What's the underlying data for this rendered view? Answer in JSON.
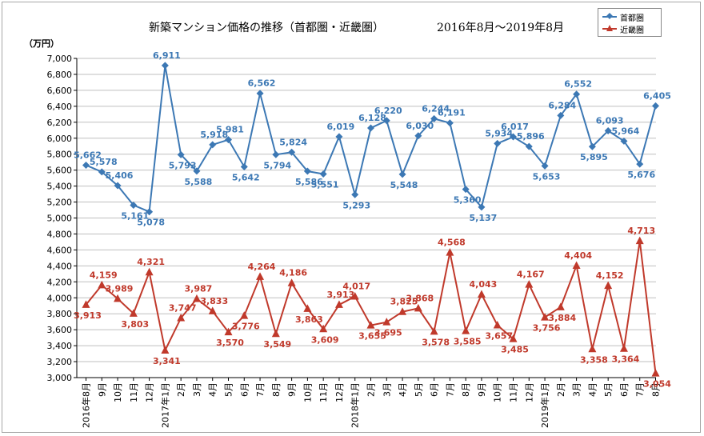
{
  "title": {
    "main": "新築マンション価格の推移（首都圏・近畿圏）",
    "period": "2016年8月～2019年8月"
  },
  "unit_label": "（万円）",
  "colors": {
    "shutoken": "#3c78b4",
    "kinki": "#c0392b",
    "grid": "#bfbfbf",
    "axis": "#000000"
  },
  "legend": [
    {
      "name": "首都圏",
      "color": "#3c78b4",
      "marker": "diamond"
    },
    {
      "name": "近畿圏",
      "color": "#c0392b",
      "marker": "triangle"
    }
  ],
  "chart_data": {
    "type": "line",
    "title": "新築マンション価格の推移（首都圏・近畿圏）",
    "subtitle": "2016年8月～2019年8月",
    "ylabel": "（万円）",
    "xlabel": "",
    "ylim": [
      3000,
      7000
    ],
    "ytick_step": 200,
    "grid": "horizontal",
    "legend_position": "top-right",
    "categories": [
      "2016年8月",
      "9月",
      "10月",
      "11月",
      "12月",
      "2017年1月",
      "2月",
      "3月",
      "4月",
      "5月",
      "6月",
      "7月",
      "8月",
      "9月",
      "10月",
      "11月",
      "12月",
      "2018年1月",
      "2月",
      "3月",
      "4月",
      "5月",
      "6月",
      "7月",
      "8月",
      "9月",
      "10月",
      "11月",
      "12月",
      "2019年1月",
      "2月",
      "3月",
      "4月",
      "5月",
      "6月",
      "7月",
      "8月"
    ],
    "series": [
      {
        "name": "首都圏",
        "marker": "diamond",
        "values": [
          5662,
          5578,
          5406,
          5161,
          5078,
          6911,
          5793,
          5588,
          5918,
          5981,
          5642,
          6562,
          5794,
          5824,
          5586,
          5551,
          6019,
          5293,
          6128,
          6220,
          5548,
          6030,
          6244,
          6191,
          5360,
          5137,
          5934,
          6017,
          5896,
          5653,
          6284,
          6552,
          5895,
          6093,
          5964,
          5676,
          6405
        ],
        "labels": [
          "5,662",
          "5,578",
          "5,406",
          "5,161",
          "5,078",
          "6,911",
          "5,793",
          "5,588",
          "5,918",
          "5,981",
          "5,642",
          "6,562",
          "5,794",
          "5,824",
          "5,586",
          "5,551",
          "6,019",
          "5,293",
          "6,128",
          "6,220",
          "5,548",
          "6,030",
          "6,244",
          "6,191",
          "5,360",
          "5,137",
          "5,934",
          "6,017",
          "5,896",
          "5,653",
          "6,284",
          "6,552",
          "5,895",
          "6,093",
          "5,964",
          "5,676",
          "6,405"
        ]
      },
      {
        "name": "近畿圏",
        "marker": "triangle",
        "values": [
          3913,
          4159,
          3989,
          3803,
          4321,
          3341,
          3747,
          3987,
          3833,
          3570,
          3776,
          4264,
          3549,
          4186,
          3863,
          3609,
          3913,
          4017,
          3655,
          3695,
          3825,
          3868,
          3578,
          4568,
          3585,
          4043,
          3657,
          3485,
          4167,
          3756,
          3884,
          4404,
          3358,
          4152,
          3364,
          4713,
          3054
        ],
        "labels": [
          "3,913",
          "4,159",
          "3,989",
          "3,803",
          "4,321",
          "3,341",
          "3,747",
          "3,987",
          "3,833",
          "3,570",
          "3,776",
          "4,264",
          "3,549",
          "4,186",
          "3,863",
          "3,609",
          "3,913",
          "4,017",
          "3,655",
          "3,695",
          "3,825",
          "3,868",
          "3,578",
          "4,568",
          "3,585",
          "4,043",
          "3,657",
          "3,485",
          "4,167",
          "3,756",
          "3,884",
          "4,404",
          "3,358",
          "4,152",
          "3,364",
          "4,713",
          "3,054"
        ]
      }
    ]
  }
}
